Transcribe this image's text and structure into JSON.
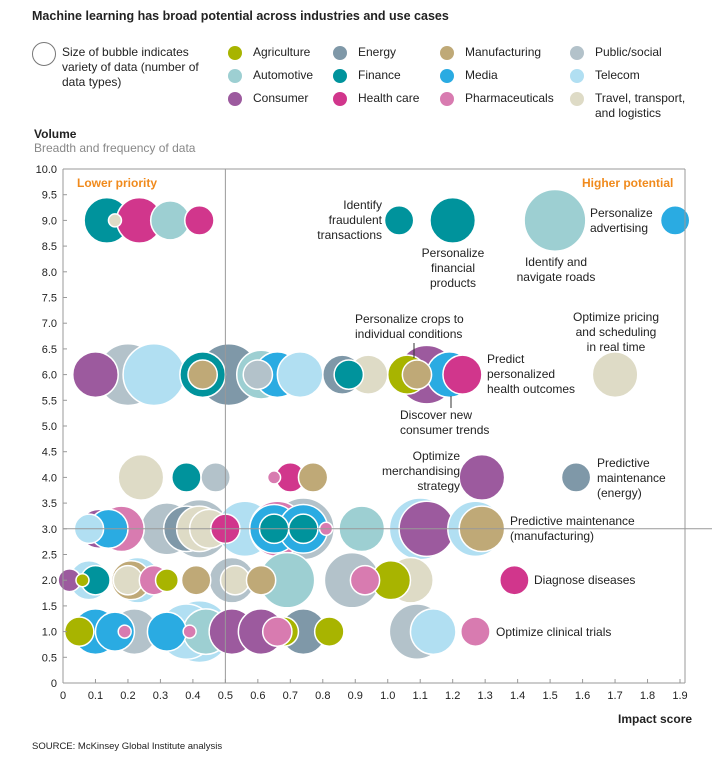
{
  "title": "Machine learning has broad potential across industries and use cases",
  "legend": {
    "size_note": "Size of bubble indicates variety of data (number of data types)",
    "items": [
      {
        "name": "Agriculture",
        "color": "#a8b400"
      },
      {
        "name": "Automotive",
        "color": "#9dcfd2"
      },
      {
        "name": "Consumer",
        "color": "#9c5a9e"
      },
      {
        "name": "Energy",
        "color": "#7f98a8"
      },
      {
        "name": "Finance",
        "color": "#00939c"
      },
      {
        "name": "Health care",
        "color": "#d1368c"
      },
      {
        "name": "Manufacturing",
        "color": "#bfa977"
      },
      {
        "name": "Media",
        "color": "#2aabe2"
      },
      {
        "name": "Pharmaceuticals",
        "color": "#d87bb0"
      },
      {
        "name": "Public/social",
        "color": "#b3c2ca"
      },
      {
        "name": "Telecom",
        "color": "#b1dff2"
      },
      {
        "name": "Travel, transport, and logistics",
        "color": "#dedbc6"
      }
    ]
  },
  "quadrants": {
    "lower": "Lower priority",
    "higher": "Higher potential",
    "color": "#f08a1c"
  },
  "annotations": [
    "Identify fraudulent transactions",
    "Personalize financial products",
    "Identify and navigate roads",
    "Personalize advertising",
    "Personalize crops to individual conditions",
    "Optimize pricing and scheduling in real time",
    "Predict personalized health outcomes",
    "Discover new consumer trends",
    "Optimize merchandising strategy",
    "Predictive maintenance (energy)",
    "Predictive maintenance (manufacturing)",
    "Diagnose diseases",
    "Optimize clinical trials"
  ],
  "source": "SOURCE: McKinsey Global Institute analysis",
  "chart_data": {
    "type": "bubble",
    "title": "Machine learning has broad potential across industries and use cases",
    "xlabel": "Impact score",
    "ylabel": "Volume",
    "ysublabel": "Breadth and frequency of data",
    "xlim": [
      0,
      1.9
    ],
    "ylim": [
      0,
      10
    ],
    "xticks": [
      "0",
      "0.1",
      "0.2",
      "0.3",
      "0.4",
      "0.5",
      "0.6",
      "0.7",
      "0.8",
      "0.9",
      "1.0",
      "1.1",
      "1.2",
      "1.3",
      "1.4",
      "1.5",
      "1.6",
      "1.7",
      "1.8",
      "1.9"
    ],
    "yticks": [
      "0",
      "0.5",
      "1.0",
      "1.5",
      "2.0",
      "2.5",
      "3.0",
      "3.5",
      "4.0",
      "4.5",
      "5.0",
      "5.5",
      "6.0",
      "6.5",
      "7.0",
      "7.5",
      "8.0",
      "8.5",
      "9.0",
      "9.5",
      "10.0"
    ],
    "reference_lines": {
      "x": 0.5,
      "y": 3.0
    },
    "size_note": "bubble diameter in impact-score units (relative variety of data)",
    "bubbles": [
      [
        0.135,
        9,
        "Finance",
        0.14
      ],
      [
        0.235,
        9,
        "Health care",
        0.14
      ],
      [
        0.33,
        9,
        "Automotive",
        0.12
      ],
      [
        0.42,
        9,
        "Health care",
        0.09
      ],
      [
        0.16,
        9,
        "Travel, transport, and logistics",
        0.04
      ],
      [
        1.035,
        9,
        "Finance",
        0.09
      ],
      [
        1.2,
        9,
        "Finance",
        0.14
      ],
      [
        1.515,
        9,
        "Automotive",
        0.19
      ],
      [
        1.885,
        9,
        "Media",
        0.09
      ],
      [
        0.1,
        6,
        "Consumer",
        0.14
      ],
      [
        0.2,
        6,
        "Public/social",
        0.19
      ],
      [
        0.28,
        6,
        "Telecom",
        0.19
      ],
      [
        0.43,
        6,
        "Finance",
        0.14
      ],
      [
        0.43,
        6,
        "Manufacturing",
        0.09
      ],
      [
        0.51,
        6,
        "Energy",
        0.19
      ],
      [
        0.61,
        6,
        "Automotive",
        0.15
      ],
      [
        0.6,
        6,
        "Public/social",
        0.09
      ],
      [
        0.66,
        6,
        "Media",
        0.14
      ],
      [
        0.73,
        6,
        "Telecom",
        0.14
      ],
      [
        0.86,
        6,
        "Energy",
        0.12
      ],
      [
        0.88,
        6,
        "Finance",
        0.09
      ],
      [
        0.94,
        6,
        "Travel, transport, and logistics",
        0.12
      ],
      [
        1.12,
        6,
        "Consumer",
        0.18
      ],
      [
        1.06,
        6,
        "Agriculture",
        0.12
      ],
      [
        1.09,
        6,
        "Manufacturing",
        0.09
      ],
      [
        1.23,
        6,
        "Health care",
        0.12
      ],
      [
        1.19,
        6,
        "Media",
        0.14
      ],
      [
        1.7,
        6,
        "Travel, transport, and logistics",
        0.14
      ],
      [
        0.24,
        4,
        "Travel, transport, and logistics",
        0.14
      ],
      [
        0.38,
        4,
        "Finance",
        0.09
      ],
      [
        0.47,
        4,
        "Public/social",
        0.09
      ],
      [
        0.65,
        4,
        "Pharmaceuticals",
        0.04
      ],
      [
        0.7,
        4,
        "Health care",
        0.09
      ],
      [
        0.77,
        4,
        "Manufacturing",
        0.09
      ],
      [
        1.29,
        4,
        "Consumer",
        0.14
      ],
      [
        1.58,
        4,
        "Energy",
        0.09
      ],
      [
        0.11,
        3,
        "Consumer",
        0.12
      ],
      [
        0.14,
        3,
        "Media",
        0.12
      ],
      [
        0.08,
        3,
        "Telecom",
        0.09
      ],
      [
        0.18,
        3,
        "Pharmaceuticals",
        0.14
      ],
      [
        0.32,
        3,
        "Public/social",
        0.16
      ],
      [
        0.38,
        3,
        "Energy",
        0.14
      ],
      [
        0.42,
        3,
        "Public/social",
        0.18
      ],
      [
        0.42,
        3,
        "Travel, transport, and logistics",
        0.14
      ],
      [
        0.45,
        3,
        "Travel, transport, and logistics",
        0.12
      ],
      [
        0.5,
        3,
        "Health care",
        0.09
      ],
      [
        0.56,
        3,
        "Telecom",
        0.17
      ],
      [
        0.66,
        3,
        "Pharmaceuticals",
        0.17
      ],
      [
        0.65,
        3,
        "Media",
        0.15
      ],
      [
        0.65,
        3,
        "Finance",
        0.09
      ],
      [
        0.74,
        3,
        "Public/social",
        0.19
      ],
      [
        0.74,
        3,
        "Media",
        0.15
      ],
      [
        0.74,
        3,
        "Finance",
        0.09
      ],
      [
        0.81,
        3,
        "Pharmaceuticals",
        0.04
      ],
      [
        0.92,
        3,
        "Automotive",
        0.14
      ],
      [
        1.12,
        3,
        "Consumer",
        0.17
      ],
      [
        1.1,
        3,
        "Telecom",
        0.19
      ],
      [
        1.27,
        3,
        "Telecom",
        0.17
      ],
      [
        1.29,
        3,
        "Manufacturing",
        0.14
      ],
      [
        0.02,
        2,
        "Consumer",
        0.07
      ],
      [
        0.08,
        2,
        "Telecom",
        0.12
      ],
      [
        0.1,
        2,
        "Finance",
        0.09
      ],
      [
        0.06,
        2,
        "Agriculture",
        0.04
      ],
      [
        0.21,
        2,
        "Manufacturing",
        0.12
      ],
      [
        0.23,
        2,
        "Telecom",
        0.14
      ],
      [
        0.2,
        2,
        "Travel, transport, and logistics",
        0.09
      ],
      [
        0.28,
        2,
        "Pharmaceuticals",
        0.09
      ],
      [
        0.32,
        2,
        "Agriculture",
        0.07
      ],
      [
        0.41,
        2,
        "Manufacturing",
        0.09
      ],
      [
        0.52,
        2,
        "Manufacturing",
        0.14
      ],
      [
        0.52,
        2,
        "Public/social",
        0.14
      ],
      [
        0.53,
        2,
        "Travel, transport, and logistics",
        0.09
      ],
      [
        0.61,
        2,
        "Manufacturing",
        0.09
      ],
      [
        0.69,
        2,
        "Automotive",
        0.17
      ],
      [
        0.89,
        2,
        "Public/social",
        0.17
      ],
      [
        0.93,
        2,
        "Pharmaceuticals",
        0.09
      ],
      [
        1.01,
        2,
        "Agriculture",
        0.12
      ],
      [
        1.07,
        2,
        "Travel, transport, and logistics",
        0.14
      ],
      [
        1.39,
        2,
        "Health care",
        0.09
      ],
      [
        0.1,
        1,
        "Media",
        0.14
      ],
      [
        0.05,
        1,
        "Agriculture",
        0.09
      ],
      [
        0.16,
        1,
        "Media",
        0.12
      ],
      [
        0.19,
        1,
        "Pharmaceuticals",
        0.04
      ],
      [
        0.22,
        1,
        "Public/social",
        0.14
      ],
      [
        0.32,
        1,
        "Media",
        0.12
      ],
      [
        0.38,
        1,
        "Telecom",
        0.17
      ],
      [
        0.44,
        1,
        "Automotive",
        0.14
      ],
      [
        0.42,
        1,
        "Telecom",
        0.19
      ],
      [
        0.39,
        1,
        "Pharmaceuticals",
        0.04
      ],
      [
        0.52,
        1,
        "Consumer",
        0.14
      ],
      [
        0.61,
        1,
        "Consumer",
        0.14
      ],
      [
        0.74,
        1,
        "Energy",
        0.14
      ],
      [
        0.68,
        1,
        "Agriculture",
        0.09
      ],
      [
        0.66,
        1,
        "Pharmaceuticals",
        0.09
      ],
      [
        0.82,
        1,
        "Agriculture",
        0.09
      ],
      [
        1.09,
        1,
        "Public/social",
        0.17
      ],
      [
        1.14,
        1,
        "Telecom",
        0.14
      ],
      [
        1.27,
        1,
        "Pharmaceuticals",
        0.09
      ]
    ]
  }
}
